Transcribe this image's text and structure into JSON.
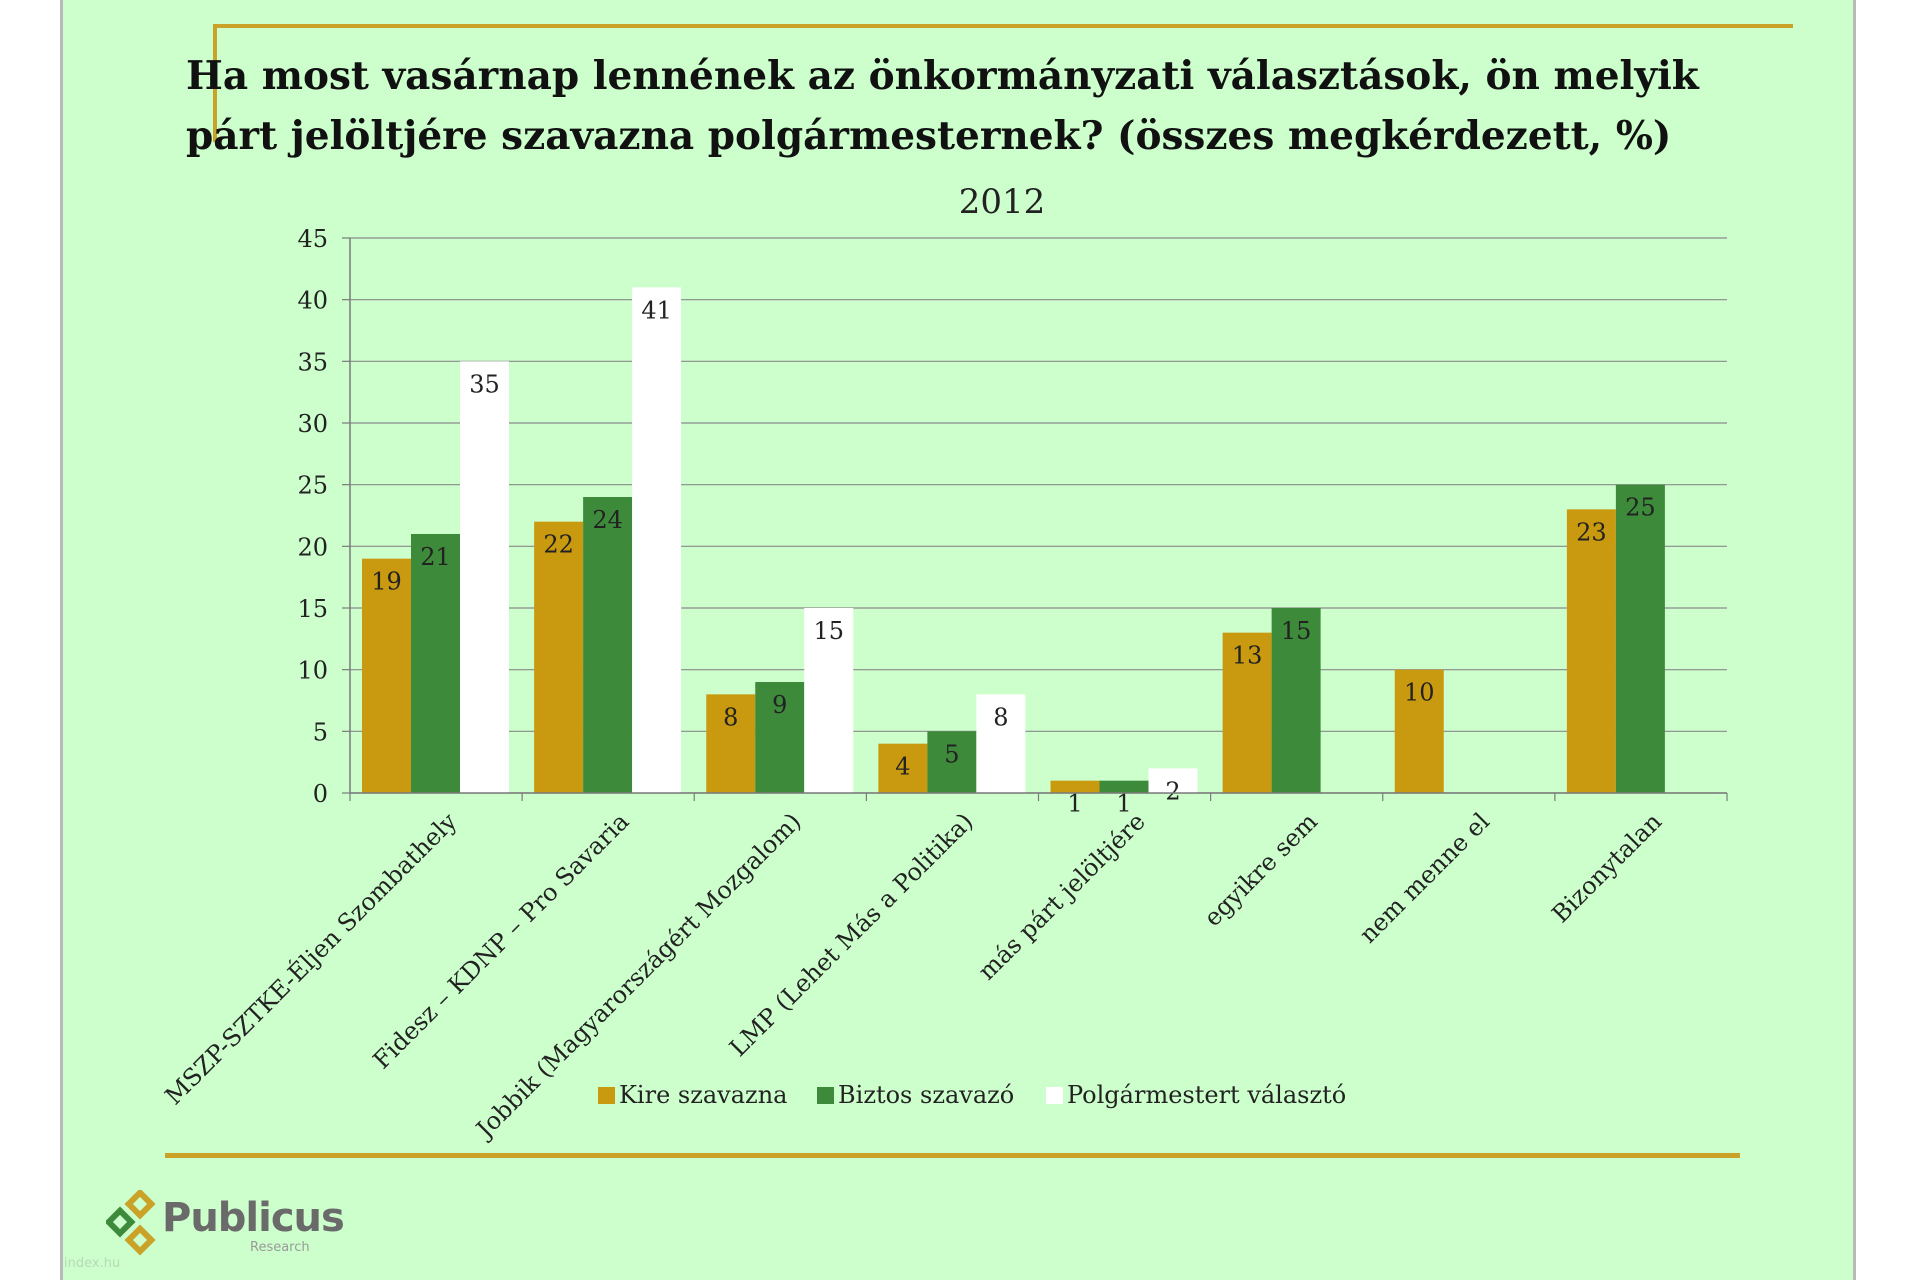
{
  "title": "Ha most vasárnap lennének az önkormányzati választások, ön melyik párt jelöltjére szavazna polgármesternek? (összes megkérdezett, %)",
  "branding": {
    "logo_text": "Publicus",
    "logo_sub": "Research",
    "watermark": "index.hu"
  },
  "colors": {
    "series": [
      "#c99a0f",
      "#3c8a3a",
      "#ffffff"
    ],
    "background": "#ccffcc",
    "accent": "#c9a227"
  },
  "chart_data": {
    "type": "bar",
    "title": "2012",
    "xlabel": "",
    "ylabel": "",
    "ylim": [
      0,
      45
    ],
    "yticks": [
      0,
      5,
      10,
      15,
      20,
      25,
      30,
      35,
      40,
      45
    ],
    "grid": true,
    "legend_position": "bottom",
    "categories": [
      "MSZP-SZTKE-Éljen Szombathely",
      "Fidesz – KDNP – Pro Savaria",
      "Jobbik (Magyarországért Mozgalom)",
      "LMP (Lehet Más a Politika)",
      "más párt jelöltjére",
      "egyikre sem",
      "nem menne el",
      "Bizonytalan"
    ],
    "series": [
      {
        "name": "Kire szavazna",
        "values": [
          19,
          22,
          8,
          4,
          1,
          13,
          10,
          23
        ]
      },
      {
        "name": "Biztos szavazó",
        "values": [
          21,
          24,
          9,
          5,
          1,
          15,
          null,
          25
        ]
      },
      {
        "name": "Polgármestert választó",
        "values": [
          35,
          41,
          15,
          8,
          2,
          null,
          null,
          null
        ]
      }
    ]
  }
}
